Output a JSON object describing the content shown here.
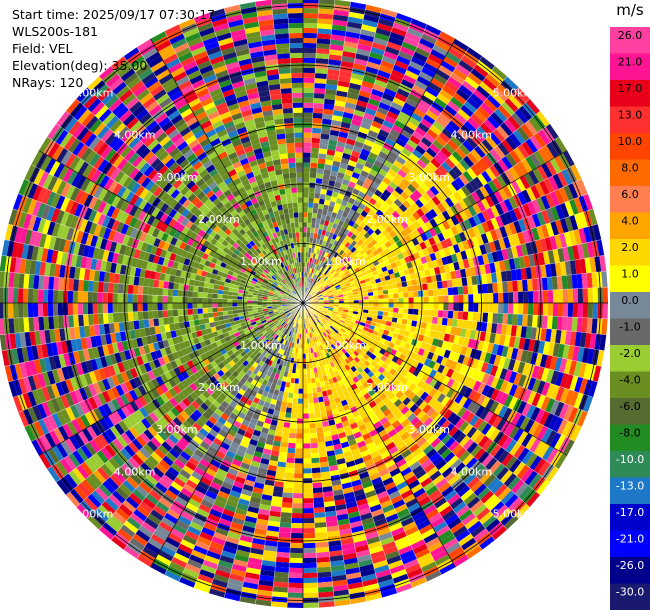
{
  "header": {
    "start_time": "Start time: 2025/09/17 07:30:17",
    "instrument": "WLS200s-181",
    "field": "Field: VEL",
    "elevation": "Elevation(deg): 35.00",
    "nrays": "NRays: 120"
  },
  "chart_data": {
    "type": "heatmap",
    "projection": "polar (PPI)",
    "n_rays": 120,
    "range_rings": [
      "1.00km",
      "2.00km",
      "3.00km",
      "4.00km",
      "5.00km"
    ],
    "ring_label_texts": {
      "ring1": "1.00km",
      "ring2": "2.00km",
      "ring3": "3.00km",
      "ring4": "4.00km",
      "ring5": "5.00km"
    },
    "pattern": "Dominantly yellow/light-positive velocities (approx. 1 to 6 m/s) to the east and south-east, olive/grey (0 to -4 m/s) toward the north-west, orange/red (6 to 17 m/s) at far north-east edge, noisy mixed values at outer ranges.",
    "colorbar": {
      "unit": "m/s",
      "min": -30.0,
      "max": 30.0,
      "tick_labels": [
        "26.0",
        "21.0",
        "17.0",
        "13.0",
        "10.0",
        "8.0",
        "6.0",
        "4.0",
        "2.0",
        "1.0",
        "0.0",
        "-1.0",
        "-2.0",
        "-4.0",
        "-6.0",
        "-8.0",
        "-10.0",
        "-13.0",
        "-17.0",
        "-21.0",
        "-26.0",
        "-30.0"
      ],
      "bins": [
        {
          "lo": 26,
          "hi": 30,
          "color": "#ff40a0"
        },
        {
          "lo": 21,
          "hi": 26,
          "color": "#ff1493"
        },
        {
          "lo": 17,
          "hi": 21,
          "color": "#e8001a"
        },
        {
          "lo": 13,
          "hi": 17,
          "color": "#ff3030"
        },
        {
          "lo": 10,
          "hi": 13,
          "color": "#ff4500"
        },
        {
          "lo": 8,
          "hi": 10,
          "color": "#ff6a00"
        },
        {
          "lo": 6,
          "hi": 8,
          "color": "#ff7f50"
        },
        {
          "lo": 4,
          "hi": 6,
          "color": "#ffa500"
        },
        {
          "lo": 2,
          "hi": 4,
          "color": "#ffd700"
        },
        {
          "lo": 1,
          "hi": 2,
          "color": "#ffff00"
        },
        {
          "lo": 0,
          "hi": 1,
          "color": "#778899"
        },
        {
          "lo": -1,
          "hi": 0,
          "color": "#696969"
        },
        {
          "lo": -2,
          "hi": -1,
          "color": "#9acd32"
        },
        {
          "lo": -4,
          "hi": -2,
          "color": "#6b8e23"
        },
        {
          "lo": -6,
          "hi": -4,
          "color": "#556b2f"
        },
        {
          "lo": -8,
          "hi": -6,
          "color": "#228b22"
        },
        {
          "lo": -10,
          "hi": -8,
          "color": "#2e8b57"
        },
        {
          "lo": -13,
          "hi": -10,
          "color": "#1e78c8"
        },
        {
          "lo": -17,
          "hi": -13,
          "color": "#0000cd"
        },
        {
          "lo": -21,
          "hi": -17,
          "color": "#0000ff"
        },
        {
          "lo": -26,
          "hi": -21,
          "color": "#00008b"
        },
        {
          "lo": -30,
          "hi": -26,
          "color": "#191970"
        }
      ]
    }
  }
}
